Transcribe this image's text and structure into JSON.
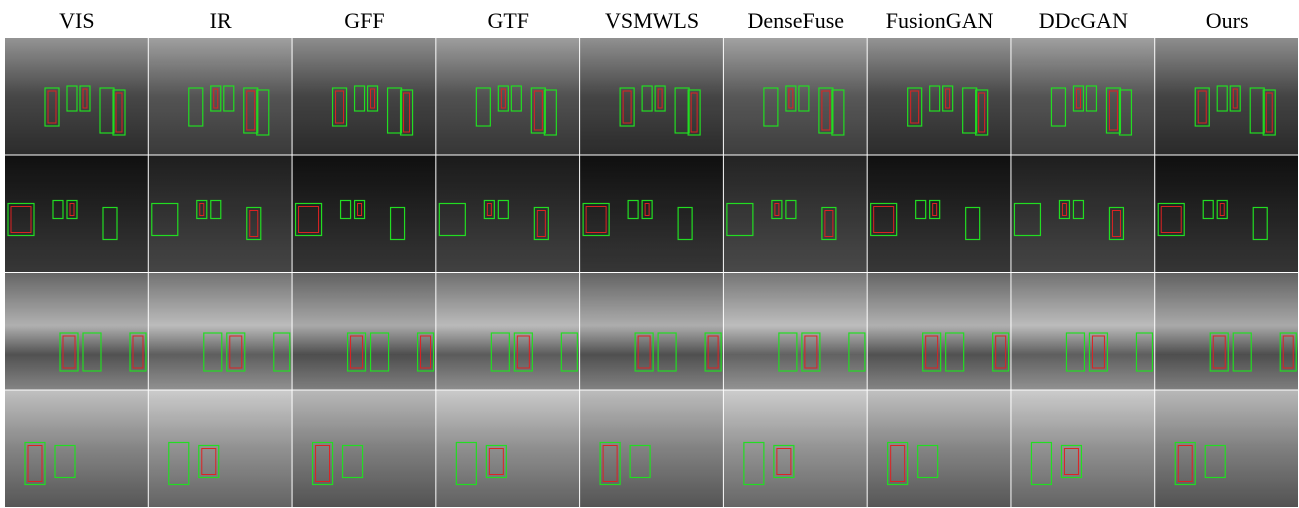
{
  "columns": [
    "VIS",
    "IR",
    "GFF",
    "GTF",
    "VSMWLS",
    "DenseFuse",
    "FusionGAN",
    "DDcGAN",
    "Ours"
  ]
}
